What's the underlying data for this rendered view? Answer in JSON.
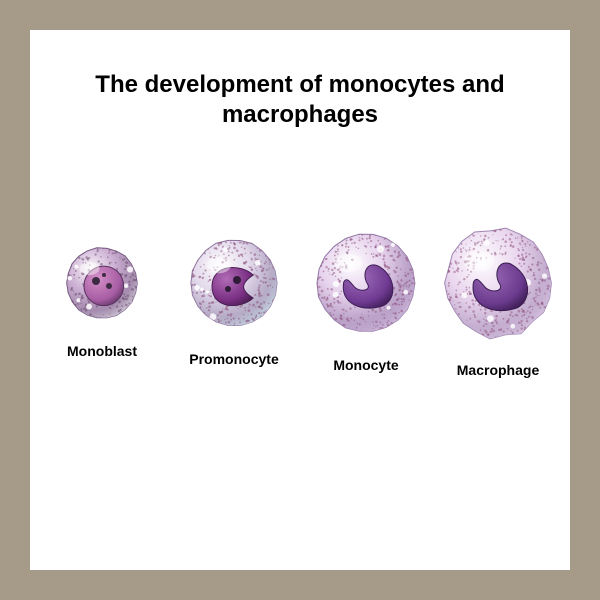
{
  "frame": {
    "outer_bg": "#a69b89",
    "inner_bg": "#ffffff",
    "pad": 30
  },
  "title": {
    "text": "The development of monocytes and macrophages",
    "fontsize": 24,
    "color": "#000000",
    "weight": 700
  },
  "label_style": {
    "fontsize": 14,
    "weight": 700,
    "color": "#000000"
  },
  "cells": [
    {
      "id": "monoblast",
      "label": "Monoblast",
      "diameter": 72,
      "body_fill": "#c9a7d0",
      "body_stroke": "#6c4a7a",
      "rim_fill": "#ded8e2",
      "nucleus_shape": "round",
      "nucleus_fill": "#a75da3",
      "nucleus_highlight": "#d48fc8",
      "nucleus_stroke": "#5a3360",
      "nucleoli": [
        [
          -6,
          -2,
          4
        ],
        [
          7,
          3,
          3
        ],
        [
          2,
          -8,
          2
        ]
      ],
      "nucleoli_fill": "#3d2b44",
      "granules": {
        "count": 140,
        "color": "#6b4c70",
        "r": 0.9,
        "alpha": 0.55
      }
    },
    {
      "id": "promonocyte",
      "label": "Promonocyte",
      "diameter": 88,
      "body_fill": "#e6d6ea",
      "body_stroke": "#8b6d9a",
      "rim_fill": "#cfe5ee",
      "nucleus_shape": "indented",
      "nucleus_fill": "#7a2f83",
      "nucleus_highlight": "#b06bb5",
      "nucleus_stroke": "#4a1e52",
      "nucleoli": [
        [
          3,
          -3,
          4
        ],
        [
          -6,
          6,
          3
        ]
      ],
      "nucleoli_fill": "#2f1b38",
      "granules": {
        "count": 260,
        "color": "#8a4b77",
        "r": 0.9,
        "alpha": 0.5
      }
    },
    {
      "id": "monocyte",
      "label": "Monocyte",
      "diameter": 100,
      "body_fill": "#e8d4ee",
      "body_stroke": "#8d6ea0",
      "rim_fill": "#d7c3e3",
      "nucleus_shape": "kidney",
      "nucleus_fill": "#6f3a92",
      "nucleus_highlight": "#9e6bb8",
      "nucleus_stroke": "#3e1d55",
      "nucleoli": [],
      "nucleoli_fill": "#2f1b38",
      "granules": {
        "count": 300,
        "color": "#8a4b77",
        "r": 0.9,
        "alpha": 0.5
      }
    },
    {
      "id": "macrophage",
      "label": "Macrophage",
      "diameter": 110,
      "body_fill": "#ecd9f0",
      "body_stroke": "#9a7fae",
      "rim_fill": "#e2cfe9",
      "nucleus_shape": "kidney",
      "nucleus_fill": "#6a3a8e",
      "nucleus_highlight": "#9866b4",
      "nucleus_stroke": "#3a1c50",
      "nucleoli": [],
      "nucleoli_fill": "#2f1b38",
      "granules": {
        "count": 340,
        "color": "#8a4b77",
        "r": 0.9,
        "alpha": 0.48
      },
      "irregular": true
    }
  ]
}
